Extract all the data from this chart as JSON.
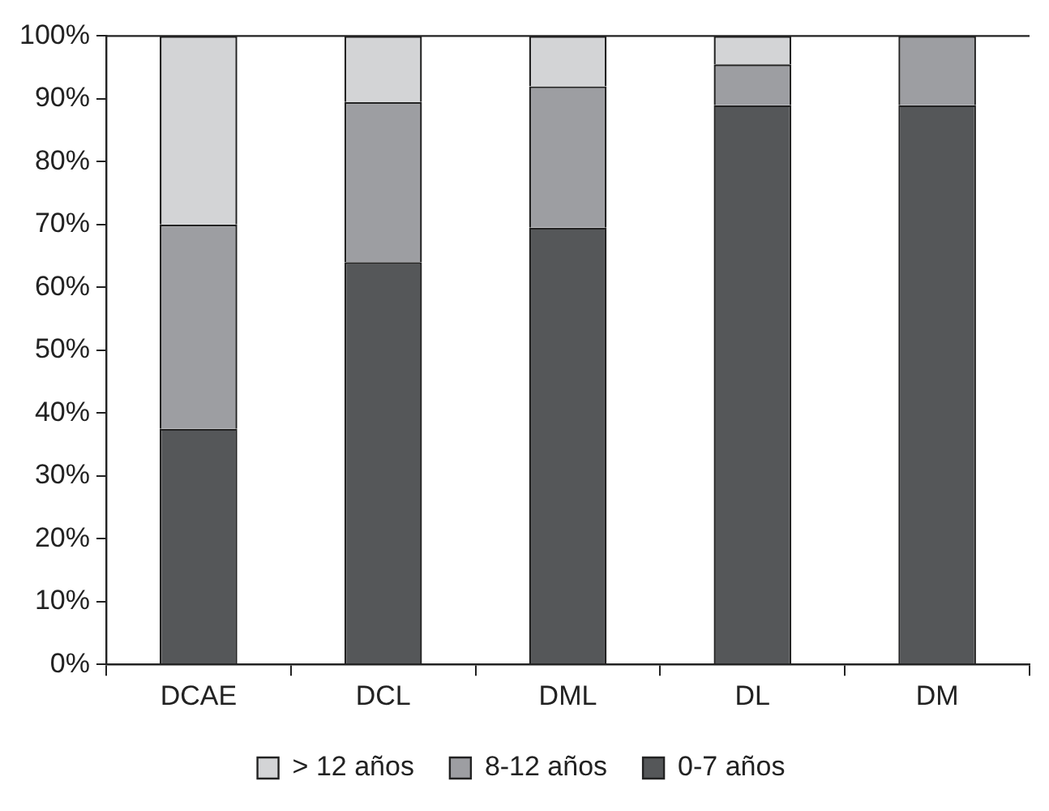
{
  "chart_data": {
    "type": "bar",
    "stacked": true,
    "categories": [
      "DCAE",
      "DCL",
      "DML",
      "DL",
      "DM"
    ],
    "series": [
      {
        "name": "0-7 años",
        "color": "#555759",
        "values": [
          37.5,
          64,
          69.5,
          89,
          89
        ]
      },
      {
        "name": "8-12 años",
        "color": "#9d9ea2",
        "values": [
          32.5,
          25.5,
          22.5,
          6.5,
          11
        ]
      },
      {
        "name": "> 12 años",
        "color": "#d3d4d6",
        "values": [
          30,
          10.5,
          8,
          4.5,
          0
        ]
      }
    ],
    "ylim": [
      0,
      100
    ],
    "yticks": [
      {
        "value": 0,
        "label": "0%"
      },
      {
        "value": 10,
        "label": "10%"
      },
      {
        "value": 20,
        "label": "20%"
      },
      {
        "value": 30,
        "label": "30%"
      },
      {
        "value": 40,
        "label": "40%"
      },
      {
        "value": 50,
        "label": "50%"
      },
      {
        "value": 60,
        "label": "60%"
      },
      {
        "value": 70,
        "label": "70%"
      },
      {
        "value": 80,
        "label": "80%"
      },
      {
        "value": 90,
        "label": "90%"
      },
      {
        "value": 100,
        "label": "100%"
      }
    ],
    "grid": false,
    "legend": "bottom"
  }
}
